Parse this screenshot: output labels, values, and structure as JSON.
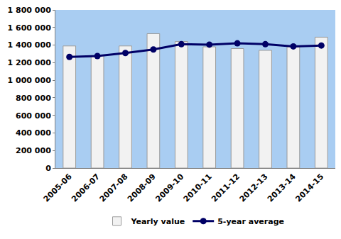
{
  "chart_data": {
    "type": "bar",
    "categories": [
      "2005-06",
      "2006-07",
      "2007-08",
      "2008-09",
      "2009-10",
      "2010-11",
      "2011-12",
      "2012-13",
      "2013-14",
      "2014-15"
    ],
    "series": [
      {
        "name": "Yearly value",
        "type": "bar",
        "color": "#f2f2f2",
        "values": [
          1390000,
          1280000,
          1390000,
          1530000,
          1440000,
          1380000,
          1360000,
          1340000,
          1380000,
          1490000
        ]
      },
      {
        "name": "5-year average",
        "type": "line",
        "color": "#000066",
        "marker": "circle",
        "line_style": "solid",
        "values": [
          1265000,
          1275000,
          1310000,
          1350000,
          1410000,
          1405000,
          1420000,
          1410000,
          1385000,
          1395000
        ]
      }
    ],
    "ylim": [
      0,
      1800000
    ],
    "yticks": [
      0,
      {
        "value": 200000,
        "label": "200 000"
      },
      {
        "value": 400000,
        "label": "400 000"
      },
      {
        "value": 600000,
        "label": "600 000"
      },
      {
        "value": 800000,
        "label": "800 000"
      },
      {
        "value": 1000000,
        "label": "1 000 000"
      },
      {
        "value": 1200000,
        "label": "1 200 000"
      },
      {
        "value": 1400000,
        "label": "1 400 000"
      },
      {
        "value": 1600000,
        "label": "1 600 000"
      },
      {
        "value": 1800000,
        "label": "1 800 000"
      }
    ],
    "grid": false,
    "legend": "bottom"
  }
}
